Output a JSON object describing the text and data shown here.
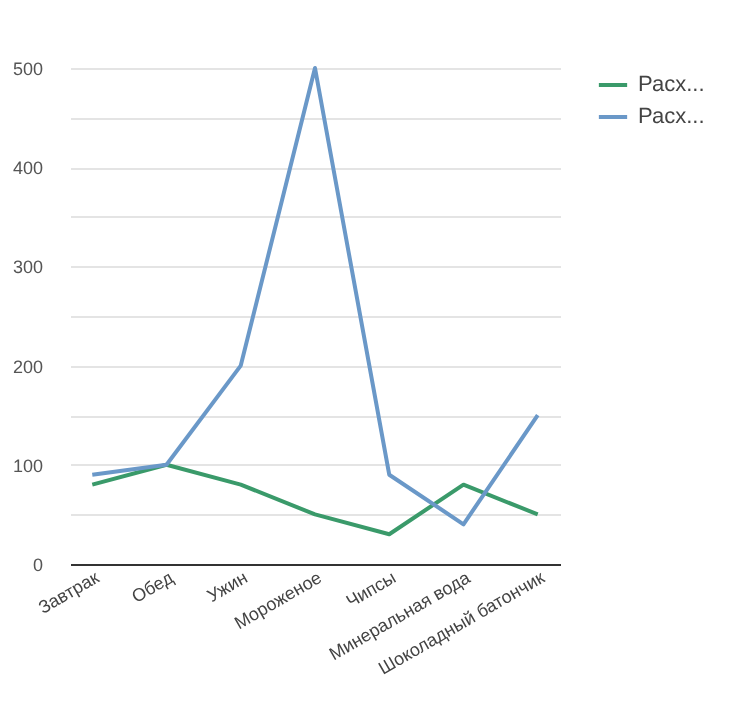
{
  "chart_data": {
    "type": "line",
    "categories": [
      "Завтрак",
      "Обед",
      "Ужин",
      "Мороженое",
      "Чипсы",
      "Минеральная вода",
      "Шоколадный батончик"
    ],
    "series": [
      {
        "name": "Расх...",
        "color": "#3a9a6a",
        "values": [
          80,
          100,
          80,
          50,
          30,
          80,
          50
        ]
      },
      {
        "name": "Расх...",
        "color": "#6a98c8",
        "values": [
          90,
          100,
          200,
          500,
          90,
          40,
          150
        ]
      }
    ],
    "ylim": [
      0,
      500
    ],
    "yticks": [
      0,
      {
        "value": 50,
        "label": null
      },
      100,
      {
        "value": 150,
        "label": null
      },
      200,
      {
        "value": 250,
        "label": null
      },
      300,
      {
        "value": 350,
        "label": null
      },
      400,
      {
        "value": 450,
        "label": null
      },
      500
    ],
    "grid": "y",
    "legend": "top right",
    "marker": "none",
    "line_style": "solid"
  }
}
